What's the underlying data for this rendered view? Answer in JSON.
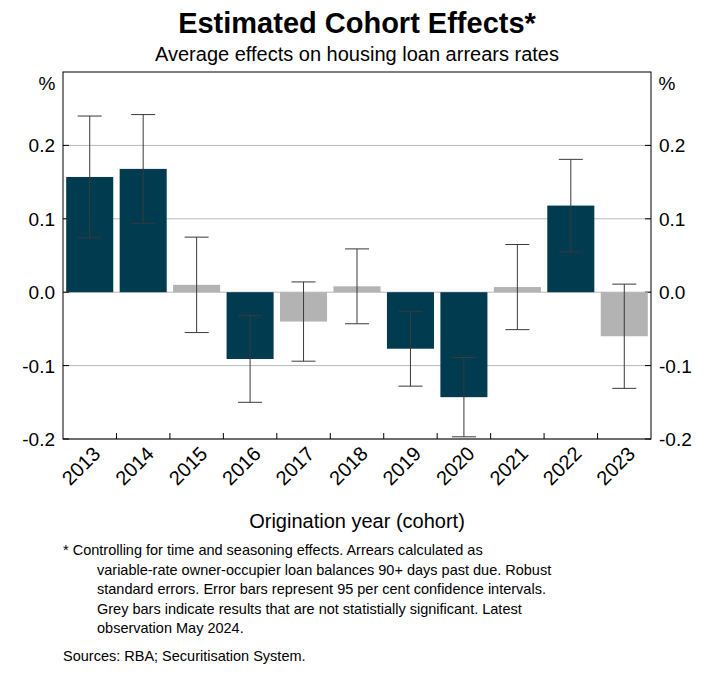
{
  "chart_data": {
    "type": "bar",
    "title": "Estimated Cohort Effects*",
    "subtitle": "Average effects on housing loan arrears rates",
    "xlabel": "Origination year (cohort)",
    "ylabel": "%",
    "categories": [
      "2013",
      "2014",
      "2015",
      "2016",
      "2017",
      "2018",
      "2019",
      "2020",
      "2021",
      "2022",
      "2023"
    ],
    "values": [
      0.157,
      0.168,
      0.01,
      -0.091,
      -0.04,
      0.008,
      -0.077,
      -0.143,
      0.007,
      0.118,
      -0.06
    ],
    "errors": [
      0.083,
      0.074,
      0.065,
      0.059,
      0.054,
      0.051,
      0.051,
      0.054,
      0.058,
      0.063,
      0.071
    ],
    "colors": [
      "#003b4f",
      "#003b4f",
      "#b3b3b3",
      "#003b4f",
      "#b3b3b3",
      "#b3b3b3",
      "#003b4f",
      "#003b4f",
      "#b3b3b3",
      "#003b4f",
      "#b3b3b3"
    ],
    "ylim": [
      -0.2,
      0.3
    ],
    "yticks": [
      -0.2,
      -0.1,
      {
        "value": 0,
        "label": "0.0"
      },
      0.1,
      0.2
    ],
    "grid": true,
    "notes": [
      "* Controlling for time and seasoning effects. Arrears calculated as",
      "variable-rate owner-occupier loan balances 90+ days past due. Robust",
      "standard errors. Error bars represent 95 per cent confidence intervals.",
      "Grey bars indicate results that are not statistially significant. Latest",
      "observation May 2024."
    ],
    "sources": "Sources: RBA; Securitisation System."
  }
}
